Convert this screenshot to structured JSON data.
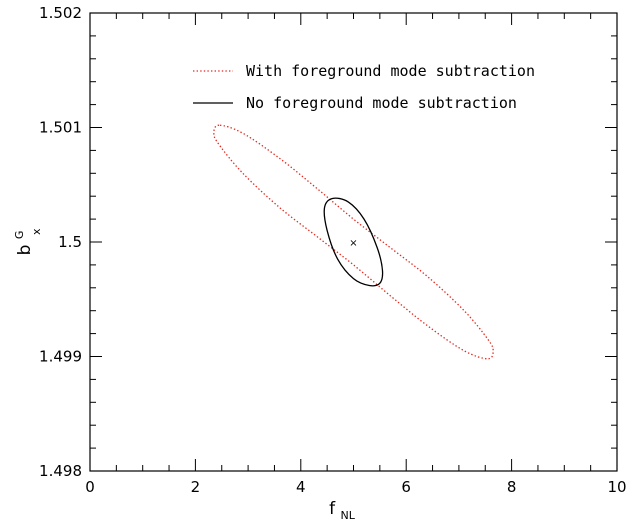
{
  "chart_data": {
    "type": "line",
    "title": "",
    "xlabel": {
      "main": "f",
      "sub": "NL"
    },
    "ylabel": {
      "main": "b",
      "sup": "G",
      "sub": "x"
    },
    "xlim": [
      0,
      10
    ],
    "ylim": [
      1.498,
      1.502
    ],
    "x_ticks": [
      "0",
      "2",
      "4",
      "6",
      "8",
      "10"
    ],
    "x_tick_values": [
      0,
      2,
      4,
      6,
      8,
      10
    ],
    "y_ticks": [
      "1.498",
      "1.499",
      "1.5",
      "1.501",
      "1.502"
    ],
    "y_tick_values": [
      1.498,
      1.499,
      1.5,
      1.501,
      1.502
    ],
    "grid": false,
    "legend_position": "top",
    "fiducial_point": {
      "x": 5,
      "y": 1.5,
      "marker": "×"
    },
    "series": [
      {
        "name": "With foreground mode subtraction",
        "shape": "ellipse",
        "style": "dotted",
        "color": "#e8261e",
        "center": [
          5,
          1.5
        ],
        "x_extent": [
          2.35,
          7.65
        ],
        "y_extent": [
          1.49897,
          1.50103
        ],
        "points": [
          [
            2.45,
            1.50102
          ],
          [
            2.35,
            1.50095
          ],
          [
            2.45,
            1.50085
          ],
          [
            2.9,
            1.5006
          ],
          [
            3.6,
            1.5003
          ],
          [
            4.3,
            1.50005
          ],
          [
            5.0,
            1.4998
          ],
          [
            5.7,
            1.49953
          ],
          [
            6.4,
            1.49927
          ],
          [
            7.1,
            1.49905
          ],
          [
            7.55,
            1.49898
          ],
          [
            7.65,
            1.49905
          ],
          [
            7.55,
            1.49915
          ],
          [
            7.1,
            1.4994
          ],
          [
            6.4,
            1.4997
          ],
          [
            5.7,
            1.49995
          ],
          [
            5.0,
            1.5002
          ],
          [
            4.3,
            1.50047
          ],
          [
            3.6,
            1.50073
          ],
          [
            2.9,
            1.50095
          ],
          [
            2.45,
            1.50102
          ]
        ]
      },
      {
        "name": "No foreground mode subtraction",
        "shape": "ellipse",
        "style": "solid",
        "color": "#000000",
        "center": [
          5,
          1.5
        ],
        "x_extent": [
          4.45,
          5.55
        ],
        "y_extent": [
          1.49962,
          1.50038
        ],
        "points": [
          [
            4.6,
            1.50038
          ],
          [
            4.45,
            1.5003
          ],
          [
            4.5,
            1.5001
          ],
          [
            4.7,
            1.49985
          ],
          [
            5.0,
            1.49968
          ],
          [
            5.3,
            1.49962
          ],
          [
            5.5,
            1.49964
          ],
          [
            5.55,
            1.49975
          ],
          [
            5.45,
            1.49995
          ],
          [
            5.2,
            1.5002
          ],
          [
            4.9,
            1.50035
          ],
          [
            4.6,
            1.50038
          ]
        ]
      }
    ]
  }
}
